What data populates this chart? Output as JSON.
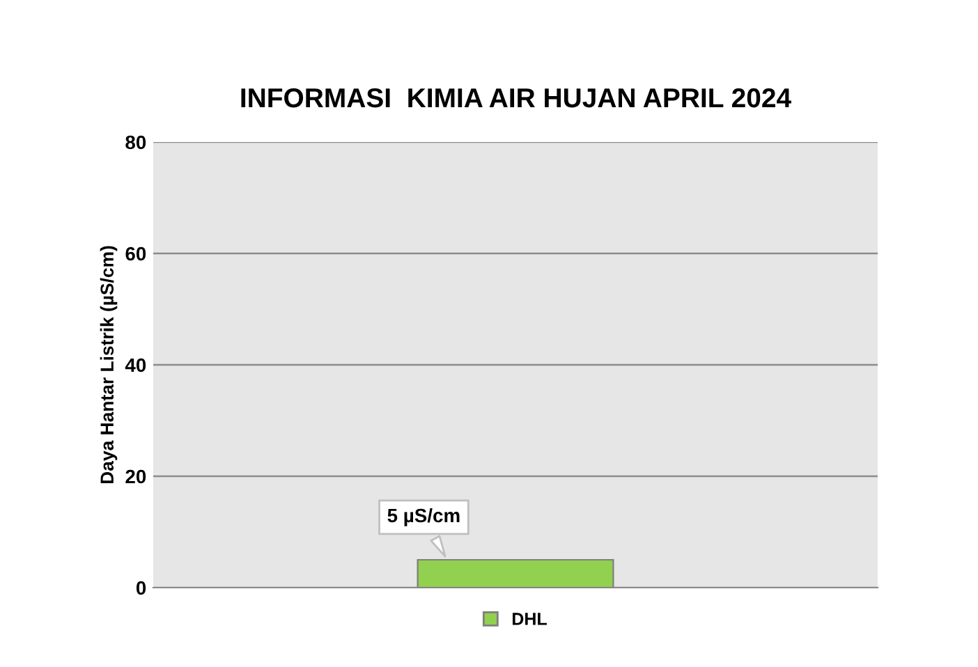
{
  "chart_data": {
    "type": "bar",
    "title": "INFORMASI  KIMIA AIR HUJAN APRIL 2024",
    "ylabel": "Daya Hantar Listrik (µS/cm)",
    "categories": [
      null
    ],
    "series": [
      {
        "name": "DHL",
        "color": "#92d050",
        "values": [
          5
        ],
        "value_labels": [
          "5 µS/cm"
        ]
      }
    ],
    "ylim": [
      0,
      80
    ],
    "yticks": [
      0,
      20,
      40,
      60,
      80
    ],
    "grid": "y",
    "legend": "bottom"
  }
}
